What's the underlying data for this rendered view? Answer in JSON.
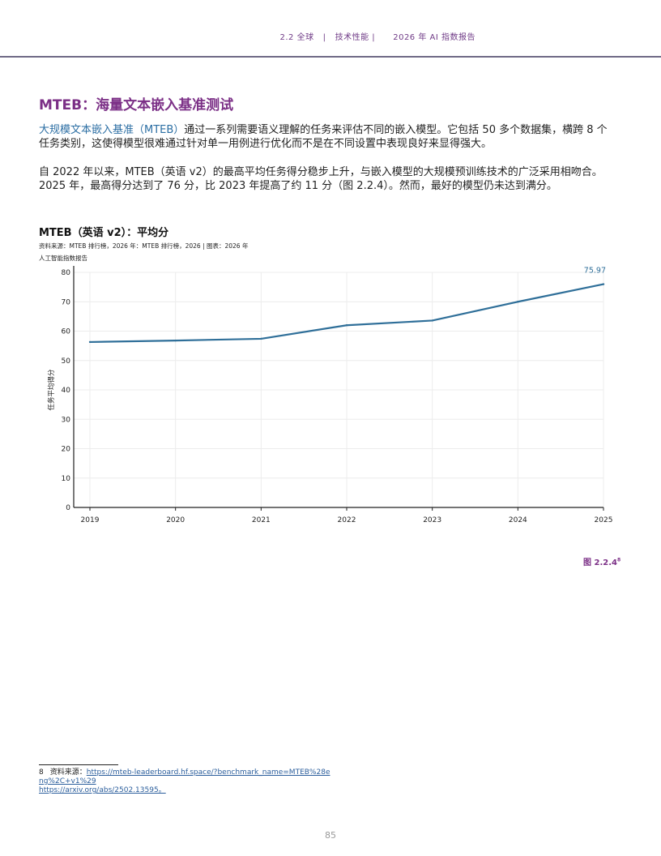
{
  "header": {
    "section": "2.2 全球",
    "separator1": "|",
    "topic": "技术性能 |",
    "report": "2026 年 AI 指数报告"
  },
  "section_title": "MTEB：海量文本嵌入基准测试",
  "paragraph1": {
    "link": "大规模文本嵌入基准（MTEB）",
    "text": "通过一系列需要语义理解的任务来评估不同的嵌入模型。它包括 50 多个数据集，横跨 8 个任务类别，这使得模型很难通过针对单一用例进行优化而不是在不同设置中表现良好来显得强大。"
  },
  "paragraph2": "自 2022 年以来，MTEB（英语 v2）的最高平均任务得分稳步上升，与嵌入模型的大规模预训练技术的广泛采用相吻合。2025 年，最高得分达到了 76 分，比 2023 年提高了约 11 分（图 2.2.4）。然而，最好的模型仍未达到满分。",
  "chart_title": "MTEB（英语 v2）：平均分",
  "chart_source": "资料来源：MTEB 排行榜，2026 年：MTEB 排行榜，2026 | 图表：2026 年人工智能指数报告",
  "figure_label": "图 2.2.4",
  "figure_sup": "8",
  "chart_data": {
    "type": "line",
    "x": [
      "2019",
      "2020",
      "2021",
      "2022",
      "2023",
      "2024",
      "2025"
    ],
    "series": [
      {
        "values": [
          56.3,
          56.8,
          57.4,
          62.0,
          63.6,
          70.0,
          75.97
        ]
      }
    ],
    "ylabel": "任务平均得分",
    "ylim": [
      0,
      80
    ],
    "yticks": [
      "0",
      "10",
      "20",
      "30",
      "40",
      "50",
      "60",
      "70",
      "80"
    ],
    "end_label": "75.97",
    "grid": true,
    "colors": {
      "line": "#2f6f99",
      "grid": "#ececec",
      "axis": "#222222"
    }
  },
  "footnote": {
    "number": "8",
    "label": "资料来源：",
    "link1": "https://mteb-leaderboard.hf.space/?benchmark_name=MTEB%28eng%2C+v1%29",
    "link2": "https://arxiv.org/abs/2502.13595。"
  },
  "page_number": "85"
}
